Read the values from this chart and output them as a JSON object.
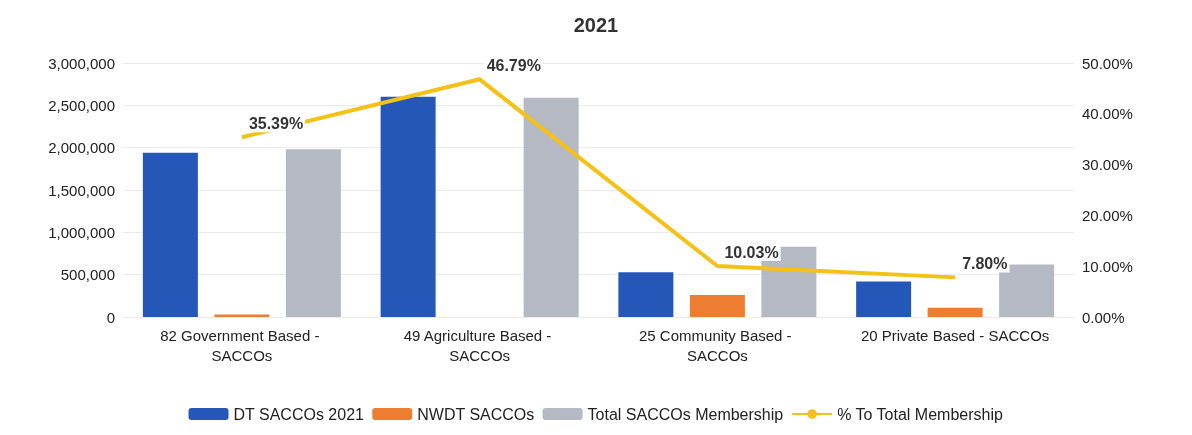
{
  "chart_data": {
    "type": "bar",
    "title": "2021",
    "categories": [
      "82 Government Based - SACCOs",
      "49 Agriculture Based - SACCOs",
      "25 Community Based - SACCOs",
      "20 Private Based - SACCOs"
    ],
    "series": [
      {
        "name": "DT SACCOs 2021",
        "color": "#2557b8",
        "values": [
          1940000,
          2600000,
          530000,
          420000
        ]
      },
      {
        "name": "NWDT SACCOs",
        "color": "#ed7d31",
        "values": [
          30000,
          0,
          260000,
          110000
        ]
      },
      {
        "name": "Total SACCOs Membership",
        "color": "#b4b9c3",
        "values": [
          1980000,
          2590000,
          830000,
          620000
        ]
      },
      {
        "name": "% To Total Membership",
        "type": "line",
        "axis": "y2",
        "color": "#f5c116",
        "values": [
          35.39,
          46.79,
          10.03,
          7.8
        ],
        "value_labels": [
          "35.39%",
          "46.79%",
          "10.03%",
          "7.80%"
        ]
      }
    ],
    "ylim": [
      0,
      3000000
    ],
    "yticks": [
      {
        "value": 0,
        "label": "0"
      },
      {
        "value": 500000,
        "label": "500,000"
      },
      {
        "value": 1000000,
        "label": "1,000,000"
      },
      {
        "value": 1500000,
        "label": "1,500,000"
      },
      {
        "value": 2000000,
        "label": "2,000,000"
      },
      {
        "value": 2500000,
        "label": "2,500,000"
      },
      {
        "value": 3000000,
        "label": "3,000,000"
      }
    ],
    "y2lim": [
      0,
      50
    ],
    "y2ticks": [
      {
        "value": 0,
        "label": "0.00%"
      },
      {
        "value": 10,
        "label": "10.00%"
      },
      {
        "value": 20,
        "label": "20.00%"
      },
      {
        "value": 30,
        "label": "30.00%"
      },
      {
        "value": 40,
        "label": "40.00%"
      },
      {
        "value": 50,
        "label": "50.00%"
      }
    ],
    "grid": "y",
    "legend": "bottom",
    "marker": "none"
  }
}
